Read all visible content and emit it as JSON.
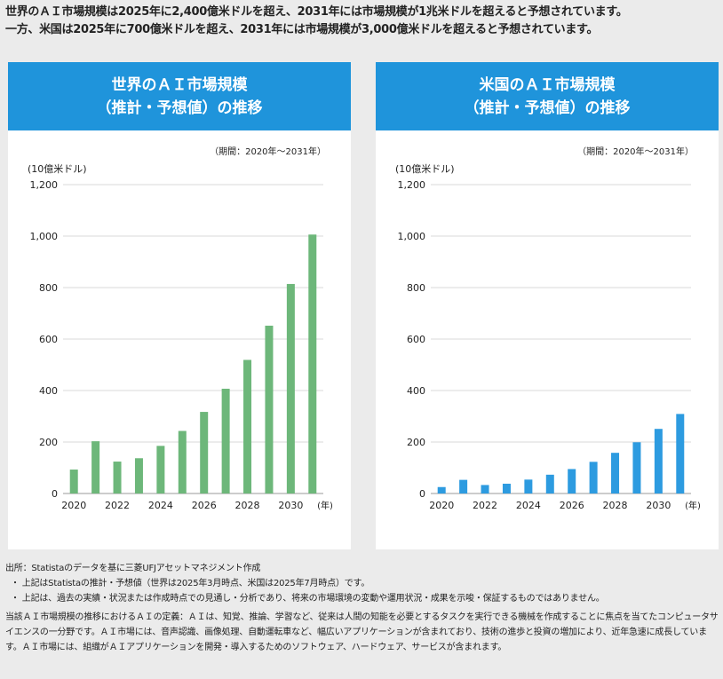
{
  "headline": {
    "line1": "世界のＡＩ市場規模は2025年に2,400億米ドルを超え、2031年には市場規模が1兆米ドルを超えると予想されています。",
    "line2": "一方、米国は2025年に700億米ドルを超え、2031年には市場規模が3,000億米ドルを超えると予想されています。"
  },
  "colors": {
    "header": "#1f94db",
    "world_bar": "#6db77a",
    "us_bar": "#2d9be0",
    "grid": "#d9d9d9"
  },
  "chart_data": [
    {
      "type": "bar",
      "title_line1": "世界のＡＩ市場規模",
      "title_line2": "（推計・予想値）の推移",
      "period": "（期間：2020年～2031年）",
      "ylabel": "(10億米ドル)",
      "xunit": "(年)",
      "x": [
        2020,
        2021,
        2022,
        2023,
        2024,
        2025,
        2026,
        2027,
        2028,
        2029,
        2030,
        2031
      ],
      "values": [
        93,
        203,
        124,
        137,
        185,
        243,
        317,
        407,
        519,
        652,
        814,
        1006
      ],
      "x_tick_labels": [
        "2020",
        "2022",
        "2024",
        "2026",
        "2028",
        "2030"
      ],
      "y_tick_labels": [
        "0",
        "200",
        "400",
        "600",
        "800",
        "1,000",
        "1,200"
      ],
      "ylim": [
        0,
        1200
      ],
      "grid": true,
      "color": "#6db77a"
    },
    {
      "type": "bar",
      "title_line1": "米国のＡＩ市場規模",
      "title_line2": "（推計・予想値）の推移",
      "period": "（期間：2020年～2031年）",
      "ylabel": "(10億米ドル)",
      "xunit": "(年)",
      "x": [
        2020,
        2021,
        2022,
        2023,
        2024,
        2025,
        2026,
        2027,
        2028,
        2029,
        2030,
        2031
      ],
      "values": [
        25,
        53,
        33,
        38,
        54,
        73,
        95,
        123,
        158,
        199,
        251,
        309
      ],
      "x_tick_labels": [
        "2020",
        "2022",
        "2024",
        "2026",
        "2028",
        "2030"
      ],
      "y_tick_labels": [
        "0",
        "200",
        "400",
        "600",
        "800",
        "1,000",
        "1,200"
      ],
      "ylim": [
        0,
        1200
      ],
      "grid": true,
      "color": "#2d9be0"
    }
  ],
  "notes": {
    "source": "出所：Statistaのデータを基に三菱UFJアセットマネジメント作成",
    "bullet1": "・ 上記はStatistaの推計・予想値（世界は2025年3月時点、米国は2025年7月時点）です。",
    "bullet2": "・ 上記は、過去の実績・状況または作成時点での見通し・分析であり、将来の市場環境の変動や運用状況・成果を示唆・保証するものではありません。",
    "definition": "当該ＡＩ市場規模の推移におけるＡＩの定義：ＡＩは、知覚、推論、学習など、従来は人間の知能を必要とするタスクを実行できる機械を作成することに焦点を当てたコンピュータサイエンスの一分野です。ＡＩ市場には、音声認識、画像処理、自動運転車など、幅広いアプリケーションが含まれており、技術の進歩と投資の増加により、近年急速に成長しています。ＡＩ市場には、組織がＡＩアプリケーションを開発・導入するためのソフトウェア、ハードウェア、サービスが含まれます。"
  }
}
